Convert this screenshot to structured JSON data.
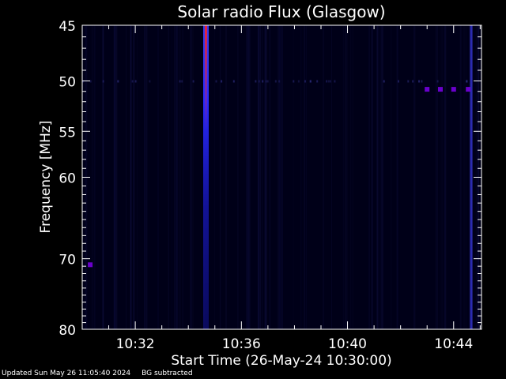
{
  "chart_data": {
    "type": "heatmap",
    "title": "Solar radio Flux (Glasgow)",
    "xlabel": "Start Time (26-May-24 10:30:00)",
    "ylabel": "Frequency [MHz]",
    "x_range_minutes": [
      0,
      15.05
    ],
    "x_ticks": [
      {
        "label": "10:32",
        "minute": 2
      },
      {
        "label": "10:36",
        "minute": 6
      },
      {
        "label": "10:40",
        "minute": 10
      },
      {
        "label": "10:44",
        "minute": 14
      }
    ],
    "y_scale": "log",
    "ylim": [
      80,
      45
    ],
    "y_ticks": [
      45,
      50,
      55,
      60,
      70,
      80
    ],
    "background_color": "#000018",
    "features": [
      {
        "kind": "burst",
        "minute": 4.65,
        "freq_range": [
          45,
          80
        ],
        "color": "#2a2aff",
        "core_color": "#ff2020"
      },
      {
        "kind": "interference_line",
        "minute": 14.65,
        "freq_range": [
          45,
          80
        ],
        "color": "#3333cc"
      },
      {
        "kind": "spot",
        "minute": 0.3,
        "freq": 70.8,
        "color": "#6a00cc"
      },
      {
        "kind": "spot",
        "minute": 13.0,
        "freq": 50.8,
        "color": "#6a00cc"
      },
      {
        "kind": "spot",
        "minute": 13.5,
        "freq": 50.8,
        "color": "#6a00cc"
      },
      {
        "kind": "spot",
        "minute": 14.0,
        "freq": 50.8,
        "color": "#6a00cc"
      },
      {
        "kind": "spot",
        "minute": 14.55,
        "freq": 50.8,
        "color": "#6a00cc"
      }
    ]
  },
  "footer": {
    "updated": "Updated Sun May 26 11:05:40 2024",
    "note": "BG subtracted"
  }
}
